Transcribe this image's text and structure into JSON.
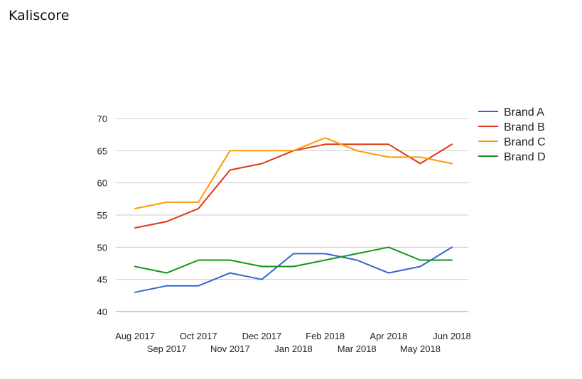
{
  "page": {
    "title": "Kaliscore"
  },
  "chart_data": {
    "type": "line",
    "title": "",
    "xlabel": "",
    "ylabel": "",
    "categories": [
      "Aug 2017",
      "Sep 2017",
      "Oct 2017",
      "Nov 2017",
      "Dec 2017",
      "Jan 2018",
      "Feb 2018",
      "Mar 2018",
      "Apr 2018",
      "May 2018",
      "Jun 2018"
    ],
    "ylim": [
      40,
      70
    ],
    "yticks": [
      40,
      45,
      50,
      55,
      60,
      65,
      70
    ],
    "grid": true,
    "legend_position": "right",
    "series": [
      {
        "name": "Brand A",
        "color": "#3366cc",
        "values": [
          43,
          44,
          44,
          46,
          45,
          49,
          49,
          48,
          46,
          47,
          50
        ]
      },
      {
        "name": "Brand B",
        "color": "#dc3912",
        "values": [
          53,
          54,
          56,
          62,
          63,
          65,
          66,
          66,
          66,
          63,
          66
        ]
      },
      {
        "name": "Brand C",
        "color": "#ff9900",
        "values": [
          56,
          57,
          57,
          65,
          65,
          65,
          67,
          65,
          64,
          64,
          63
        ]
      },
      {
        "name": "Brand D",
        "color": "#109618",
        "values": [
          47,
          46,
          48,
          48,
          47,
          47,
          48,
          49,
          50,
          48,
          48
        ]
      }
    ]
  }
}
